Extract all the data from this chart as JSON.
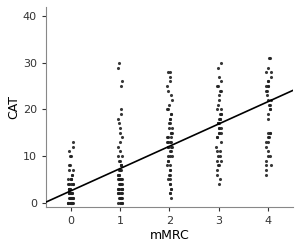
{
  "title": "",
  "xlabel": "mMRC",
  "ylabel": "CAT",
  "xlim": [
    -0.5,
    4.5
  ],
  "ylim": [
    -1,
    42
  ],
  "yticks": [
    0,
    10,
    20,
    30,
    40
  ],
  "xticks": [
    0,
    1,
    2,
    3,
    4
  ],
  "line_color": "#000000",
  "dot_color": "#222222",
  "dot_size": 5,
  "dot_alpha": 0.9,
  "background_color": "#ffffff",
  "line_intercept": 2.5,
  "line_slope": 4.8,
  "seed": 99,
  "jitter": 0.05,
  "groups": {
    "0": {
      "n": 55,
      "values": [
        0,
        0,
        0,
        0,
        0,
        0,
        0,
        0,
        0,
        0,
        0,
        1,
        1,
        1,
        1,
        1,
        1,
        1,
        1,
        1,
        2,
        2,
        2,
        2,
        2,
        2,
        2,
        2,
        3,
        3,
        3,
        3,
        3,
        3,
        3,
        4,
        4,
        4,
        4,
        4,
        5,
        5,
        5,
        5,
        6,
        6,
        7,
        7,
        8,
        8,
        10,
        10,
        11,
        12,
        13
      ]
    },
    "1": {
      "n": 65,
      "values": [
        0,
        0,
        0,
        0,
        0,
        1,
        1,
        1,
        1,
        1,
        1,
        2,
        2,
        2,
        2,
        2,
        2,
        3,
        3,
        3,
        3,
        3,
        3,
        3,
        4,
        4,
        4,
        4,
        4,
        4,
        5,
        5,
        5,
        5,
        5,
        5,
        5,
        6,
        6,
        6,
        6,
        7,
        7,
        7,
        8,
        8,
        8,
        9,
        9,
        10,
        10,
        11,
        12,
        13,
        14,
        15,
        16,
        17,
        18,
        19,
        20,
        25,
        26,
        29,
        30
      ]
    },
    "2": {
      "n": 55,
      "values": [
        1,
        2,
        2,
        3,
        3,
        4,
        4,
        5,
        5,
        6,
        6,
        7,
        7,
        8,
        8,
        9,
        9,
        10,
        10,
        10,
        11,
        11,
        12,
        12,
        12,
        12,
        13,
        13,
        13,
        13,
        14,
        14,
        14,
        15,
        15,
        15,
        16,
        16,
        17,
        17,
        18,
        18,
        19,
        19,
        20,
        20,
        21,
        22,
        23,
        24,
        25,
        26,
        27,
        28,
        28
      ]
    },
    "3": {
      "n": 45,
      "values": [
        4,
        5,
        6,
        7,
        8,
        8,
        9,
        9,
        10,
        10,
        11,
        11,
        12,
        13,
        14,
        14,
        15,
        15,
        15,
        16,
        16,
        16,
        17,
        17,
        17,
        17,
        18,
        18,
        18,
        19,
        19,
        19,
        20,
        20,
        21,
        22,
        23,
        24,
        24,
        25,
        25,
        26,
        27,
        29,
        30
      ]
    },
    "4": {
      "n": 38,
      "values": [
        6,
        7,
        8,
        8,
        9,
        10,
        10,
        11,
        12,
        13,
        13,
        14,
        14,
        15,
        15,
        15,
        18,
        19,
        20,
        20,
        21,
        21,
        22,
        22,
        23,
        24,
        24,
        25,
        25,
        25,
        26,
        26,
        27,
        28,
        28,
        29,
        31,
        31
      ]
    }
  }
}
